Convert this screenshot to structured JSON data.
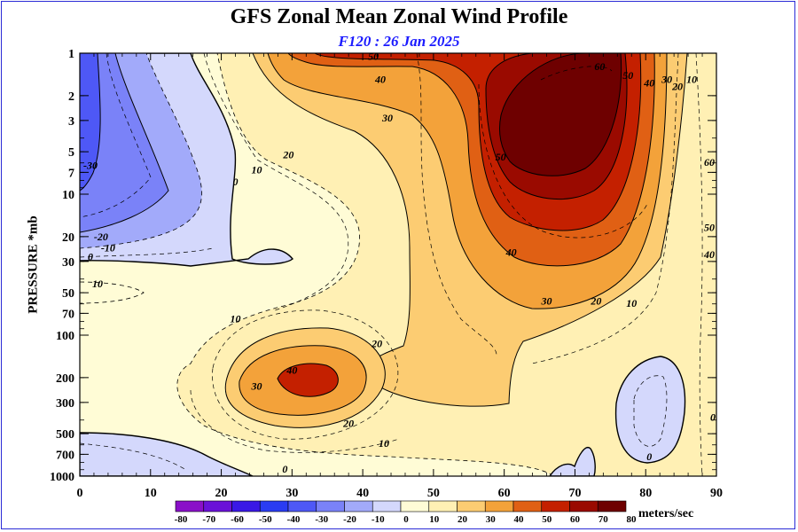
{
  "chart_data": {
    "type": "contour",
    "title": "GFS Zonal Mean Zonal Wind Profile",
    "subtitle": "F120 : 26 Jan 2025",
    "ylabel": "PRESSURE *mb",
    "xlabel": "",
    "xlim": [
      0,
      90
    ],
    "x_ticks": [
      "0",
      "10",
      "20",
      "30",
      "40",
      "50",
      "60",
      "70",
      "80",
      "90"
    ],
    "y_scale": "log",
    "ylim": [
      1000,
      1
    ],
    "y_ticks": [
      "1",
      "2",
      "3",
      "5",
      "7",
      "10",
      "20",
      "30",
      "50",
      "70",
      "100",
      "200",
      "300",
      "500",
      "700",
      "1000"
    ],
    "y_tick_values": [
      1,
      2,
      3,
      5,
      7,
      10,
      20,
      30,
      50,
      70,
      100,
      200,
      300,
      500,
      700,
      1000
    ],
    "colorbar": {
      "levels": [
        -80,
        -70,
        -60,
        -50,
        -40,
        -30,
        -20,
        -10,
        0,
        10,
        20,
        30,
        40,
        50,
        60,
        70,
        80
      ],
      "labels": [
        "-80",
        "-70",
        "-60",
        "-50",
        "-40",
        "-30",
        "-20",
        "-10",
        "0",
        "10",
        "20",
        "30",
        "40",
        "50",
        "60",
        "70",
        "80"
      ],
      "colors": [
        "#8a10c8",
        "#6a12d8",
        "#3a18e6",
        "#2a3cf2",
        "#4e58f6",
        "#7a82f8",
        "#a2aafa",
        "#d4d8fc",
        "#fffcd6",
        "#fff0b4",
        "#fccc72",
        "#f3a23a",
        "#e06014",
        "#c42000",
        "#9a0a00",
        "#6e0000"
      ],
      "unit": "meters/sec"
    },
    "contour_labels": [
      {
        "text": "50",
        "lat": 41.5,
        "p": 1.1
      },
      {
        "text": "40",
        "lat": 42.5,
        "p": 1.6
      },
      {
        "text": "30",
        "lat": 43.5,
        "p": 3.0
      },
      {
        "text": "20",
        "lat": 29.5,
        "p": 5.5
      },
      {
        "text": "10",
        "lat": 25,
        "p": 7.0
      },
      {
        "text": "0",
        "lat": 22,
        "p": 8.5
      },
      {
        "text": "-30",
        "lat": 1.5,
        "p": 6.5
      },
      {
        "text": "-20",
        "lat": 3,
        "p": 21
      },
      {
        "text": "-10",
        "lat": 4,
        "p": 25
      },
      {
        "text": "0",
        "lat": 1.5,
        "p": 29
      },
      {
        "text": "10",
        "lat": 2.5,
        "p": 45
      },
      {
        "text": "60",
        "lat": 73.5,
        "p": 1.3
      },
      {
        "text": "50",
        "lat": 77.5,
        "p": 1.5
      },
      {
        "text": "40",
        "lat": 80.5,
        "p": 1.7
      },
      {
        "text": "30",
        "lat": 83,
        "p": 1.6
      },
      {
        "text": "20",
        "lat": 84.5,
        "p": 1.8
      },
      {
        "text": "10",
        "lat": 86.5,
        "p": 1.6
      },
      {
        "text": "50",
        "lat": 59.5,
        "p": 5.7
      },
      {
        "text": "40",
        "lat": 61,
        "p": 27
      },
      {
        "text": "30",
        "lat": 66,
        "p": 60
      },
      {
        "text": "20",
        "lat": 73,
        "p": 60
      },
      {
        "text": "10",
        "lat": 78,
        "p": 62
      },
      {
        "text": "60",
        "lat": 89,
        "p": 6.2
      },
      {
        "text": "50",
        "lat": 89,
        "p": 18
      },
      {
        "text": "40",
        "lat": 89,
        "p": 28
      },
      {
        "text": "10",
        "lat": 22,
        "p": 80
      },
      {
        "text": "20",
        "lat": 42,
        "p": 120
      },
      {
        "text": "40",
        "lat": 30,
        "p": 185
      },
      {
        "text": "30",
        "lat": 25,
        "p": 240
      },
      {
        "text": "20",
        "lat": 38,
        "p": 440
      },
      {
        "text": "10",
        "lat": 43,
        "p": 610
      },
      {
        "text": "0",
        "lat": 29,
        "p": 930
      },
      {
        "text": "0",
        "lat": 80.5,
        "p": 760
      },
      {
        "text": "0",
        "lat": 89.5,
        "p": 400
      }
    ]
  }
}
